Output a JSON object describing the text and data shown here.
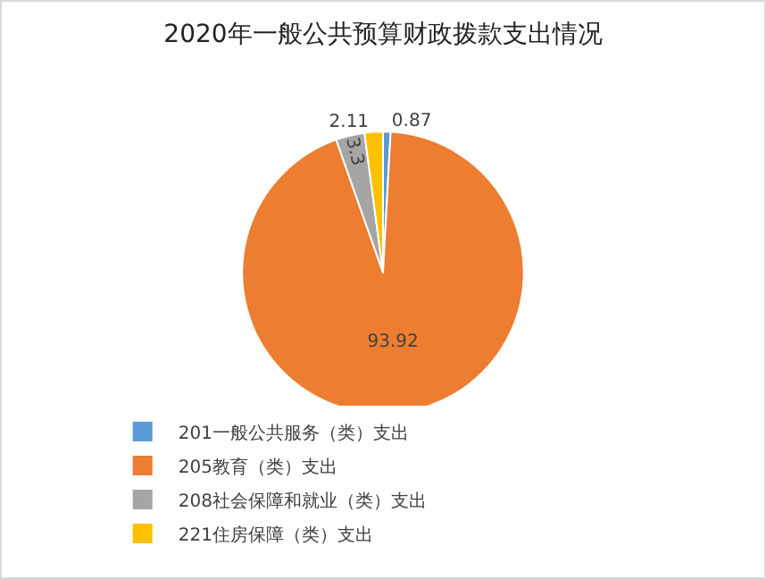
{
  "chart_data": {
    "type": "pie",
    "title": "2020年一般公共预算财政拨款支出情况",
    "categories": [
      "201一般公共服务（类）支出",
      "205教育（类）支出",
      "208社会保障和就业（类）支出",
      "221住房保障（类）支出"
    ],
    "values": [
      0.87,
      93.92,
      3.3,
      2.11
    ],
    "colors": [
      "#5b9bd5",
      "#ed7d31",
      "#a5a5a5",
      "#ffc000"
    ],
    "data_labels": true,
    "legend": "bottom"
  }
}
